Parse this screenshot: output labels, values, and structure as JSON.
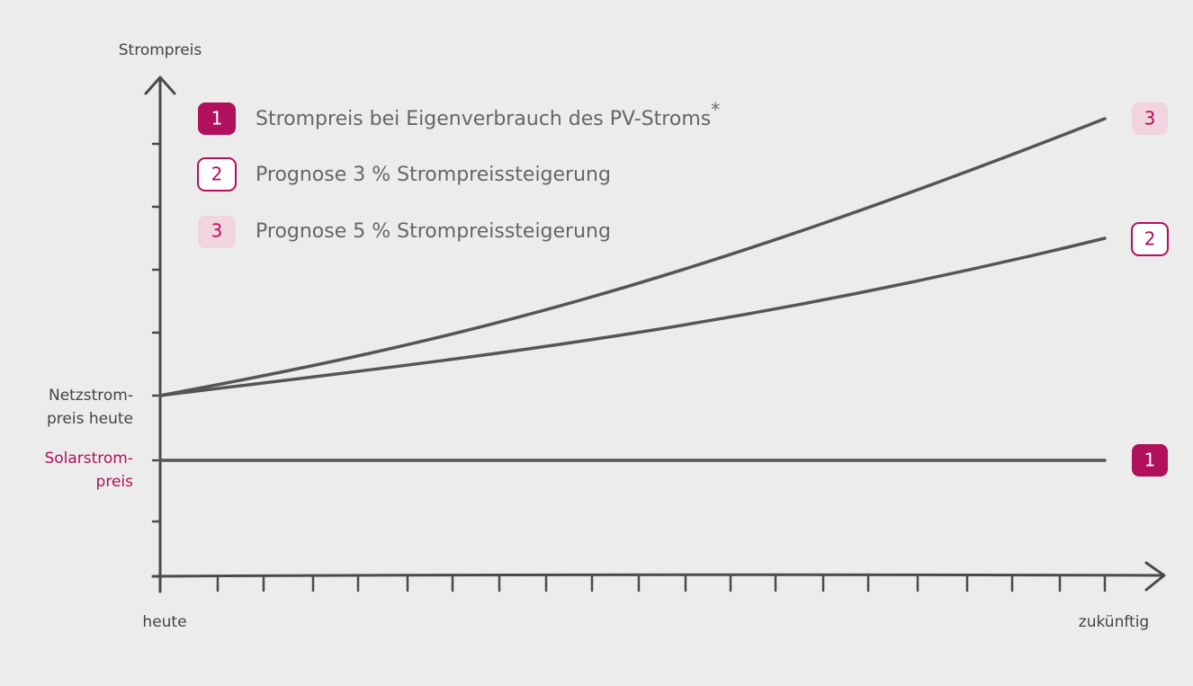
{
  "axis": {
    "y_title": "Strompreis",
    "y_label_grid": [
      "Netzstrom-",
      "preis heute"
    ],
    "y_label_solar": [
      "Solarstrom-",
      "preis"
    ],
    "x_start": "heute",
    "x_end": "zukünftig"
  },
  "legend": [
    {
      "badge": "1",
      "label": "Strompreis bei Eigenverbrauch des PV-Stroms",
      "note": "*"
    },
    {
      "badge": "2",
      "label": "Prognose 3 % Strompreissteigerung"
    },
    {
      "badge": "3",
      "label": "Prognose 5 % Strompreissteigerung"
    }
  ],
  "end_badges": [
    "1",
    "2",
    "3"
  ]
}
